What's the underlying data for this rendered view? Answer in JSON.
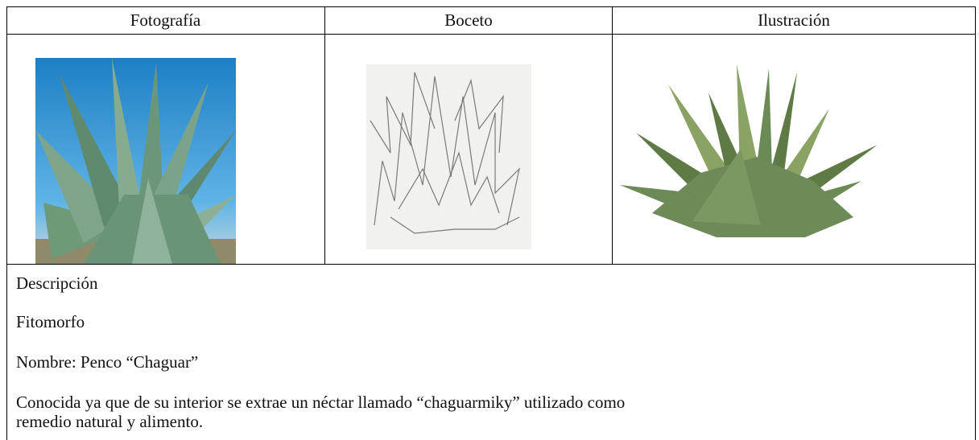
{
  "table": {
    "headers": [
      "Fotografía",
      "Boceto",
      "Ilustración"
    ]
  },
  "description": {
    "heading": "Descripción",
    "lines": [
      "Fitomorfo",
      "Nombre: Penco “Chaguar”",
      "Conocida ya que de su interior se extrae un néctar llamado “chaguarmiky” utilizado como remedio natural y alimento."
    ]
  }
}
